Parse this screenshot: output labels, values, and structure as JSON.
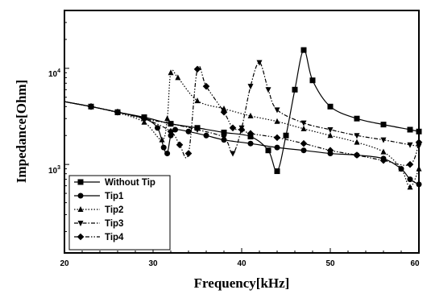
{
  "chart_data": {
    "type": "line",
    "xlabel": "Frequency[kHz]",
    "ylabel": "Impedance[Ohm]",
    "x_scale": "linear",
    "y_scale": "log",
    "xlim": [
      20,
      60
    ],
    "ylim": [
      120,
      40000
    ],
    "x_ticks": [
      20,
      30,
      40,
      50,
      60
    ],
    "y_ticks": [
      {
        "base": "10",
        "exp": "3",
        "value": 1000
      },
      {
        "base": "10",
        "exp": "4",
        "value": 10000
      }
    ],
    "legend_position": "bottom-left",
    "series": [
      {
        "name": "Without Tip",
        "marker": "square",
        "line_style": "solid",
        "x": [
          20,
          23,
          26,
          29,
          32,
          35,
          38,
          41,
          43,
          44,
          45,
          46,
          47,
          48,
          50,
          53,
          56,
          59,
          60
        ],
        "y": [
          4500,
          4000,
          3500,
          3100,
          2650,
          2400,
          2150,
          1950,
          1400,
          850,
          2000,
          6000,
          15500,
          7500,
          4000,
          3000,
          2600,
          2300,
          2200
        ]
      },
      {
        "name": "Tip1",
        "marker": "circle",
        "line_style": "solid",
        "x": [
          20,
          23,
          26,
          29,
          30.5,
          31.2,
          31.6,
          32,
          32.5,
          34,
          36,
          38,
          41,
          44,
          47,
          50,
          53,
          56,
          58,
          59,
          60
        ],
        "y": [
          4500,
          4000,
          3500,
          3000,
          2400,
          1500,
          1300,
          2000,
          2300,
          2200,
          2000,
          1800,
          1650,
          1500,
          1400,
          1300,
          1250,
          1150,
          900,
          700,
          620
        ]
      },
      {
        "name": "Tip2",
        "marker": "triangle-up",
        "line_style": "dotted",
        "x": [
          20,
          23,
          26,
          29,
          31,
          31.6,
          32,
          32.8,
          35,
          38,
          41,
          44,
          47,
          50,
          53,
          56,
          58,
          59,
          60
        ],
        "y": [
          4500,
          4000,
          3450,
          2750,
          1800,
          3000,
          9000,
          8000,
          4600,
          3800,
          3200,
          2800,
          2350,
          2000,
          1700,
          1350,
          900,
          580,
          900
        ]
      },
      {
        "name": "Tip3",
        "marker": "triangle-down",
        "line_style": "dash-dot",
        "x": [
          20,
          23,
          26,
          29,
          32,
          35,
          38,
          39,
          40,
          41,
          42,
          43,
          44,
          47,
          50,
          53,
          56,
          59,
          60
        ],
        "y": [
          4500,
          4000,
          3500,
          3000,
          2650,
          2300,
          1900,
          1300,
          2400,
          6500,
          11500,
          6000,
          3700,
          2700,
          2300,
          2000,
          1800,
          1600,
          1550
        ]
      },
      {
        "name": "Tip4",
        "marker": "diamond",
        "line_style": "dash-dot-dot",
        "x": [
          20,
          23,
          26,
          29,
          32,
          33,
          34,
          35,
          36,
          38,
          39,
          40,
          41,
          44,
          47,
          50,
          53,
          56,
          59,
          60
        ],
        "y": [
          4500,
          4000,
          3500,
          3000,
          2200,
          1600,
          1300,
          9800,
          6500,
          3500,
          2400,
          2300,
          2100,
          1900,
          1650,
          1400,
          1250,
          1100,
          1000,
          1700
        ]
      }
    ]
  }
}
